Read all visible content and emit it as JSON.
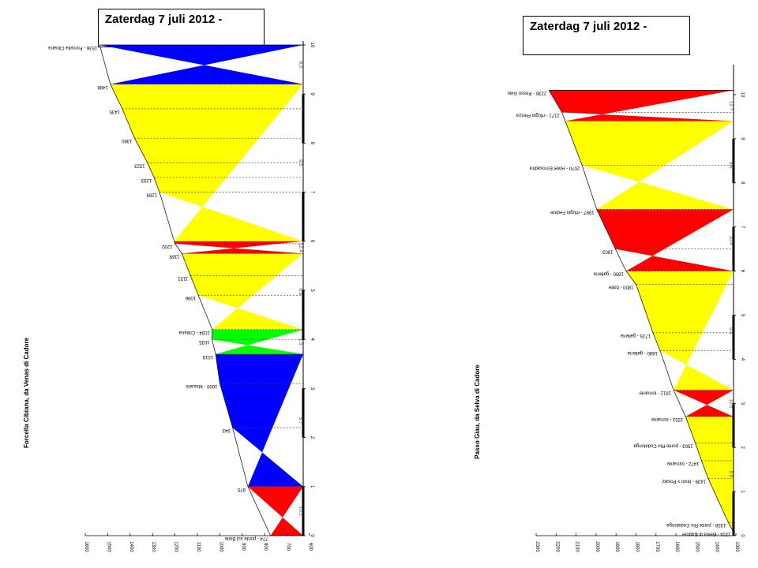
{
  "chart_data": [
    {
      "type": "area",
      "orientation": "rotated-90",
      "title": "Zaterdag 7 juli 2012 -",
      "ylabel": "Forcella Cibiana, da Venas di Cadore",
      "xlim": [
        0,
        10
      ],
      "ylim": [
        600,
        1600
      ],
      "y_ticks": [
        "600",
        "700",
        "800",
        "900",
        "1000",
        "1100",
        "1200",
        "1300",
        "1400",
        "1500",
        "1600"
      ],
      "x_ticks": [
        "0",
        "1",
        "2",
        "3",
        "4",
        "5",
        "6",
        "7",
        "8",
        "9",
        "10"
      ],
      "profile": [
        {
          "km": 0,
          "alt": 774,
          "label": "774 - ponte sul Boite"
        },
        {
          "km": 1,
          "alt": 875,
          "label": "875"
        },
        {
          "km": 2.2,
          "alt": 943,
          "label": "943"
        },
        {
          "km": 3.1,
          "alt": 1000,
          "label": "1000 - Masariè"
        },
        {
          "km": 3.7,
          "alt": 1019,
          "label": "1019"
        },
        {
          "km": 4.0,
          "alt": 1035,
          "label": "1035"
        },
        {
          "km": 4.2,
          "alt": 1034,
          "label": "1034 - Cibiana"
        },
        {
          "km": 4.9,
          "alt": 1096,
          "label": "1096"
        },
        {
          "km": 5.3,
          "alt": 1131,
          "label": "1131"
        },
        {
          "km": 5.75,
          "alt": 1169,
          "label": "1169"
        },
        {
          "km": 5.95,
          "alt": 1200,
          "label": "1200"
        },
        {
          "km": 7.0,
          "alt": 1269,
          "label": "1269"
        },
        {
          "km": 7.3,
          "alt": 1293,
          "label": "1293"
        },
        {
          "km": 7.6,
          "alt": 1323,
          "label": "1323"
        },
        {
          "km": 8.1,
          "alt": 1380,
          "label": "1380"
        },
        {
          "km": 8.7,
          "alt": 1435,
          "label": "1435"
        },
        {
          "km": 9.2,
          "alt": 1488,
          "label": "1488"
        },
        {
          "km": 10.0,
          "alt": 1536,
          "label": "1536 - Forcella Cibiana"
        }
      ],
      "segments": [
        {
          "from": 0,
          "to": 1,
          "color": "#ff0000",
          "label": "10.1"
        },
        {
          "from": 1,
          "to": 3.7,
          "color": "#0000ff",
          "label": "5.7"
        },
        {
          "from": 3.7,
          "to": 4.2,
          "color": "#00ff00",
          "label": "1.5"
        },
        {
          "from": 4.2,
          "to": 5.75,
          "color": "#ffff00",
          "label": "8.9"
        },
        {
          "from": 5.75,
          "to": 6.0,
          "color": "#ff0000",
          "label": "12.4"
        },
        {
          "from": 6.0,
          "to": 9.2,
          "color": "#ffff00",
          "label": "9.5"
        },
        {
          "from": 9.2,
          "to": 10.0,
          "color": "#0000ff",
          "label": "6.0"
        }
      ]
    },
    {
      "type": "area",
      "orientation": "rotated-90",
      "title": "Zaterdag 7 juli 2012 -",
      "ylabel": "Passo Giau, da Selva di Cadore",
      "xlim": [
        0,
        10.5
      ],
      "ylim": [
        1300,
        2300
      ],
      "y_ticks": [
        "1300",
        "1400",
        "1500",
        "1600",
        "1700",
        "1800",
        "1900",
        "2000",
        "2100",
        "2200",
        "2300"
      ],
      "x_ticks": [
        "0",
        "1",
        "2",
        "3",
        "4",
        "5",
        "6",
        "7",
        "8",
        "9",
        "10"
      ],
      "profile": [
        {
          "km": 0.1,
          "alt": 1314,
          "label": "1314 - Selva di Cadore"
        },
        {
          "km": 0.3,
          "alt": 1338,
          "label": "1338 - ponte Rio Codalonga"
        },
        {
          "km": 1.3,
          "alt": 1439,
          "label": "1439 - bivio x Posalz"
        },
        {
          "km": 1.7,
          "alt": 1472,
          "label": "1472 - tornante"
        },
        {
          "km": 2.1,
          "alt": 1503,
          "label": "1503 - ponte Rio Codalonga"
        },
        {
          "km": 2.7,
          "alt": 1552,
          "label": "1552 - tornante"
        },
        {
          "km": 3.3,
          "alt": 1612,
          "label": "1612 - tornante"
        },
        {
          "km": 4.2,
          "alt": 1680,
          "label": "1680 - galleria"
        },
        {
          "km": 4.6,
          "alt": 1715,
          "label": "1715 - galleria"
        },
        {
          "km": 5.7,
          "alt": 1800,
          "label": "1800 - baite"
        },
        {
          "km": 6.0,
          "alt": 1850,
          "label": "1850 - galleria"
        },
        {
          "km": 6.5,
          "alt": 1903,
          "label": "1903"
        },
        {
          "km": 7.4,
          "alt": 1997,
          "label": "1997 - rifugio Fedare"
        },
        {
          "km": 8.4,
          "alt": 2070,
          "label": "2070 - Hotel Enrosadira"
        },
        {
          "km": 9.6,
          "alt": 2171,
          "label": "2171 - rifugio Piezza"
        },
        {
          "km": 10.1,
          "alt": 2236,
          "label": "2236 - Passo Giau"
        }
      ],
      "segments": [
        {
          "from": 0.1,
          "to": 2.7,
          "color": "#ffff00",
          "label": "9.9"
        },
        {
          "from": 2.7,
          "to": 3.3,
          "color": "#ff0000",
          "label": "10.0"
        },
        {
          "from": 3.3,
          "to": 6.0,
          "color": "#ffff00",
          "label": "9.4"
        },
        {
          "from": 6.0,
          "to": 7.4,
          "color": "#ff0000",
          "label": "10.4"
        },
        {
          "from": 7.4,
          "to": 9.4,
          "color": "#ffff00",
          "label": "8.6"
        },
        {
          "from": 9.4,
          "to": 10.1,
          "color": "#ff0000",
          "label": "12.7"
        }
      ]
    }
  ]
}
